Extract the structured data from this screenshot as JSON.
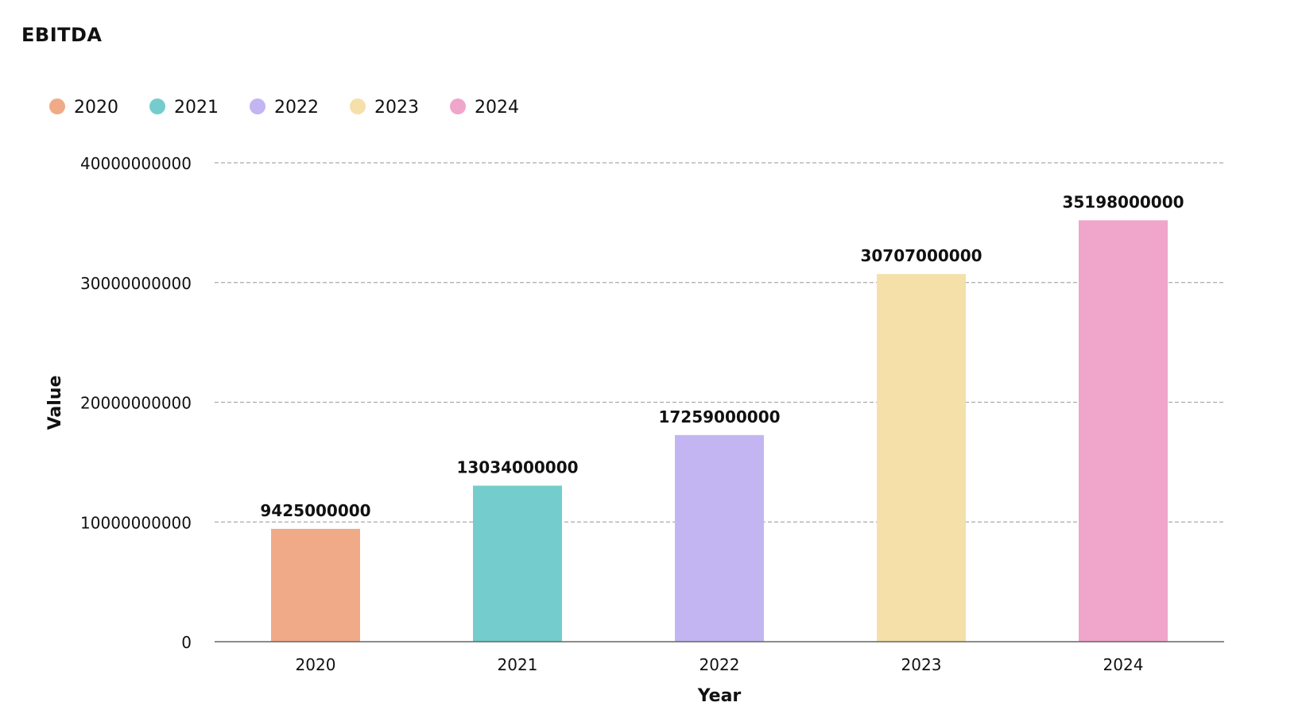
{
  "chart_data": {
    "type": "bar",
    "title": "EBITDA",
    "xlabel": "Year",
    "ylabel": "Value",
    "categories": [
      "2020",
      "2021",
      "2022",
      "2023",
      "2024"
    ],
    "values": [
      9425000000,
      13034000000,
      17259000000,
      30707000000,
      35198000000
    ],
    "data_labels": [
      "9425000000",
      "13034000000",
      "17259000000",
      "30707000000",
      "35198000000"
    ],
    "colors": [
      "#F0AA88",
      "#74CDCC",
      "#C3B5F1",
      "#F5E0AA",
      "#F0A5CA"
    ],
    "ylim": [
      0,
      40000000000
    ],
    "yticks": [
      0,
      10000000000,
      20000000000,
      30000000000,
      40000000000
    ],
    "ytick_labels": [
      "0",
      "10000000000",
      "20000000000",
      "30000000000",
      "40000000000"
    ],
    "legend": {
      "placement": "top-left",
      "entries": [
        "2020",
        "2021",
        "2022",
        "2023",
        "2024"
      ]
    },
    "grid": true
  }
}
